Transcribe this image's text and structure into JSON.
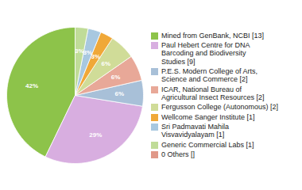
{
  "chart_data": {
    "type": "pie",
    "categories": [
      "Mined from GenBank, NCBI [13]",
      "Paul Hebert Centre for DNA\nBarcoding and Biodiversity\nStudies [9]",
      "P.E.S. Modern College of Arts,\nScience and Commerce [2]",
      "ICAR, National Bureau of\nAgricultural Insect Resources [2]",
      "Fergusson College (Autonomous) [2]",
      "Wellcome Sanger Institute [1]",
      "Sri Padmavati Mahila\nVisvavidyalayam [1]",
      "Generic Commercial Labs [1]",
      "0 Others []"
    ],
    "values": [
      42,
      29,
      6,
      6,
      6,
      3,
      3,
      3,
      0
    ],
    "value_labels": [
      "42%",
      "29%",
      "6%",
      "6%",
      "6%",
      "3%",
      "3%",
      "3%",
      null
    ],
    "colors": [
      "#8dc34a",
      "#d8aee0",
      "#a8c0d8",
      "#e8a898",
      "#d0dc98",
      "#f0a838",
      "#a8c8e0",
      "#c0dc98",
      "#e09888"
    ],
    "data_labels": true,
    "legend": "right"
  }
}
